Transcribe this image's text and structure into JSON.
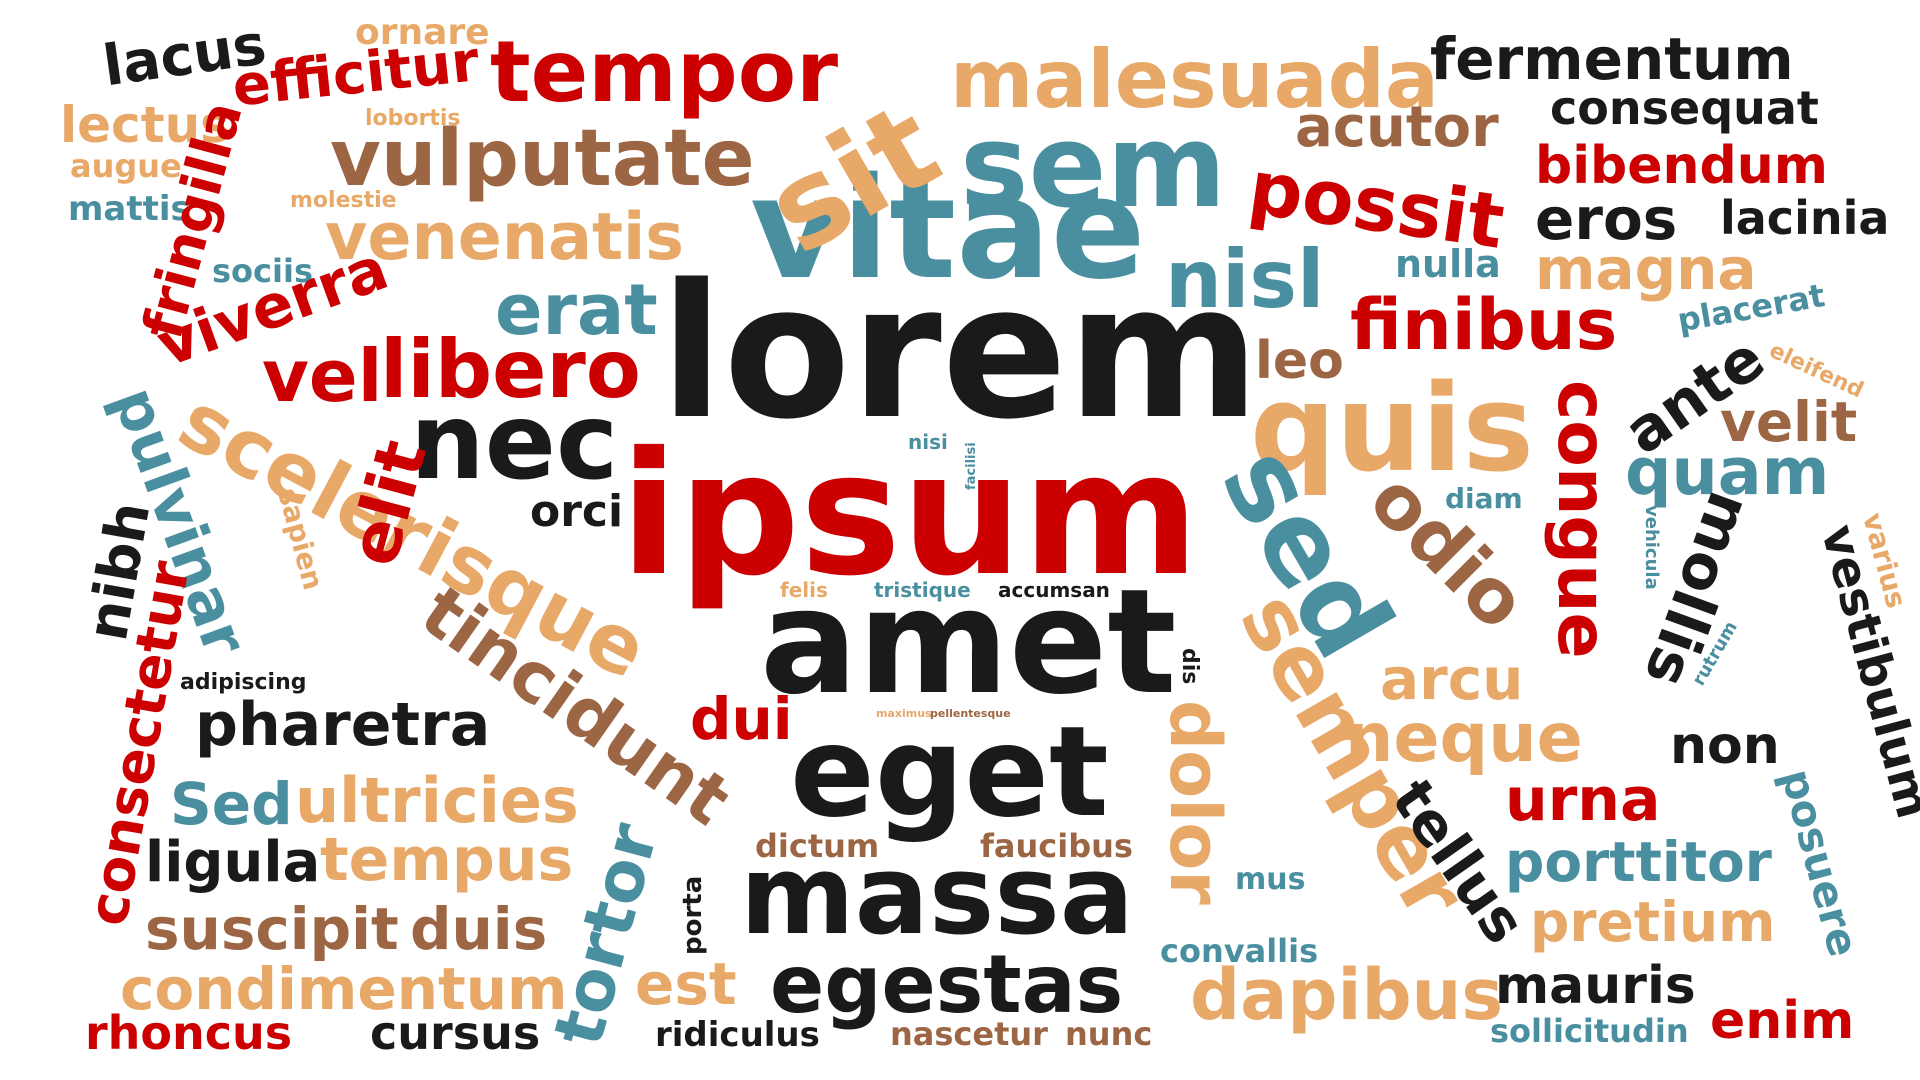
{
  "palette": {
    "black": "#1a1a1a",
    "red": "#cc0000",
    "tan": "#e8a868",
    "teal": "#4a8fa0",
    "brown": "#9c6644"
  },
  "words": [
    {
      "text": "lorem",
      "color": "red",
      "size": "xxl"
    },
    {
      "text": "ipsum",
      "color": "red",
      "size": "xxl"
    },
    {
      "text": "vitae",
      "color": "teal",
      "size": "xl"
    },
    {
      "text": "amet",
      "color": "black",
      "size": "xl"
    },
    {
      "text": "eget",
      "color": "black",
      "size": "xl"
    },
    {
      "text": "massa",
      "color": "black",
      "size": "xl"
    },
    {
      "text": "sem",
      "color": "teal",
      "size": "xl"
    },
    {
      "text": "sit",
      "color": "tan",
      "size": "xl"
    },
    {
      "text": "quis",
      "color": "tan",
      "size": "xl"
    },
    {
      "text": "nec",
      "color": "black",
      "size": "l"
    },
    {
      "text": "sed",
      "color": "teal",
      "size": "l"
    },
    {
      "text": "semper",
      "color": "tan",
      "size": "l"
    },
    {
      "text": "scelerisque",
      "color": "tan",
      "size": "l"
    },
    {
      "text": "tincidunt",
      "color": "brown",
      "size": "l"
    },
    {
      "text": "egestas",
      "color": "black",
      "size": "l"
    },
    {
      "text": "malesuada",
      "color": "tan",
      "size": "l"
    },
    {
      "text": "tempor",
      "color": "red",
      "size": "l"
    },
    {
      "text": "possit",
      "color": "red",
      "size": "l"
    },
    {
      "text": "vulputate",
      "color": "brown",
      "size": "l"
    },
    {
      "text": "libero",
      "color": "red",
      "size": "l"
    },
    {
      "text": "nisl",
      "color": "teal",
      "size": "l"
    },
    {
      "text": "odio",
      "color": "brown",
      "size": "l"
    },
    {
      "text": "dolor",
      "color": "tan",
      "size": "l"
    },
    {
      "text": "dapibus",
      "color": "tan",
      "size": "l"
    },
    {
      "text": "congue",
      "color": "red",
      "size": "l"
    },
    {
      "text": "fermentum",
      "color": "black",
      "size": "m"
    },
    {
      "text": "consequat",
      "color": "black",
      "size": "m"
    },
    {
      "text": "acutor",
      "color": "brown",
      "size": "m"
    },
    {
      "text": "bibendum",
      "color": "red",
      "size": "m"
    },
    {
      "text": "eros",
      "color": "black",
      "size": "m"
    },
    {
      "text": "lacinia",
      "color": "black",
      "size": "m"
    },
    {
      "text": "magna",
      "color": "tan",
      "size": "m"
    },
    {
      "text": "nulla",
      "color": "teal",
      "size": "s"
    },
    {
      "text": "finibus",
      "color": "red",
      "size": "m"
    },
    {
      "text": "placerat",
      "color": "teal",
      "size": "s"
    },
    {
      "text": "eleifend",
      "color": "tan",
      "size": "xs"
    },
    {
      "text": "ante",
      "color": "black",
      "size": "m"
    },
    {
      "text": "velit",
      "color": "brown",
      "size": "m"
    },
    {
      "text": "quam",
      "color": "teal",
      "size": "m"
    },
    {
      "text": "diam",
      "color": "teal",
      "size": "s"
    },
    {
      "text": "mollis",
      "color": "black",
      "size": "m"
    },
    {
      "text": "vestibulum",
      "color": "black",
      "size": "m"
    },
    {
      "text": "varius",
      "color": "tan",
      "size": "s"
    },
    {
      "text": "vehicula",
      "color": "teal",
      "size": "xs"
    },
    {
      "text": "rutrum",
      "color": "teal",
      "size": "xs"
    },
    {
      "text": "arcu",
      "color": "tan",
      "size": "m"
    },
    {
      "text": "neque",
      "color": "tan",
      "size": "m"
    },
    {
      "text": "non",
      "color": "black",
      "size": "m"
    },
    {
      "text": "urna",
      "color": "red",
      "size": "m"
    },
    {
      "text": "posuere",
      "color": "teal",
      "size": "m"
    },
    {
      "text": "porttitor",
      "color": "teal",
      "size": "m"
    },
    {
      "text": "tellus",
      "color": "black",
      "size": "m"
    },
    {
      "text": "pretium",
      "color": "tan",
      "size": "m"
    },
    {
      "text": "mauris",
      "color": "black",
      "size": "m"
    },
    {
      "text": "enim",
      "color": "red",
      "size": "m"
    },
    {
      "text": "sollicitudin",
      "color": "teal",
      "size": "s"
    },
    {
      "text": "lacus",
      "color": "black",
      "size": "m"
    },
    {
      "text": "ornare",
      "color": "tan",
      "size": "s"
    },
    {
      "text": "efficitur",
      "color": "red",
      "size": "m"
    },
    {
      "text": "lectus",
      "color": "tan",
      "size": "m"
    },
    {
      "text": "lobortis",
      "color": "tan",
      "size": "xs"
    },
    {
      "text": "augue",
      "color": "tan",
      "size": "s"
    },
    {
      "text": "mattis",
      "color": "teal",
      "size": "s"
    },
    {
      "text": "molestie",
      "color": "tan",
      "size": "xs"
    },
    {
      "text": "fringilla",
      "color": "red",
      "size": "m"
    },
    {
      "text": "venenatis",
      "color": "tan",
      "size": "m"
    },
    {
      "text": "sociis",
      "color": "teal",
      "size": "s"
    },
    {
      "text": "erat",
      "color": "teal",
      "size": "m"
    },
    {
      "text": "viverra",
      "color": "red",
      "size": "m"
    },
    {
      "text": "vel",
      "color": "red",
      "size": "m"
    },
    {
      "text": "leo",
      "color": "brown",
      "size": "m"
    },
    {
      "text": "pulvinar",
      "color": "teal",
      "size": "m"
    },
    {
      "text": "nisi",
      "color": "teal",
      "size": "xs"
    },
    {
      "text": "orci",
      "color": "black",
      "size": "s"
    },
    {
      "text": "facilisi",
      "color": "teal",
      "size": "xs"
    },
    {
      "text": "sapien",
      "color": "tan",
      "size": "s"
    },
    {
      "text": "nibh",
      "color": "black",
      "size": "m"
    },
    {
      "text": "elit",
      "color": "red",
      "size": "m"
    },
    {
      "text": "consectetur",
      "color": "red",
      "size": "m"
    },
    {
      "text": "felis",
      "color": "tan",
      "size": "xs"
    },
    {
      "text": "tristique",
      "color": "teal",
      "size": "xs"
    },
    {
      "text": "accumsan",
      "color": "black",
      "size": "xs"
    },
    {
      "text": "adipiscing",
      "color": "black",
      "size": "xs"
    },
    {
      "text": "dis",
      "color": "black",
      "size": "xs"
    },
    {
      "text": "pharetra",
      "color": "black",
      "size": "m"
    },
    {
      "text": "dui",
      "color": "red",
      "size": "m"
    },
    {
      "text": "maximus",
      "color": "tan",
      "size": "xxs"
    },
    {
      "text": "pellentesque",
      "color": "brown",
      "size": "xxs"
    },
    {
      "text": "Sed",
      "color": "teal",
      "size": "m"
    },
    {
      "text": "ultricies",
      "color": "tan",
      "size": "m"
    },
    {
      "text": "ligula",
      "color": "black",
      "size": "m"
    },
    {
      "text": "tempus",
      "color": "tan",
      "size": "m"
    },
    {
      "text": "tortor",
      "color": "teal",
      "size": "m"
    },
    {
      "text": "dictum",
      "color": "brown",
      "size": "s"
    },
    {
      "text": "faucibus",
      "color": "brown",
      "size": "s"
    },
    {
      "text": "mus",
      "color": "teal",
      "size": "s"
    },
    {
      "text": "convallis",
      "color": "teal",
      "size": "s"
    },
    {
      "text": "suscipit",
      "color": "brown",
      "size": "m"
    },
    {
      "text": "duis",
      "color": "brown",
      "size": "m"
    },
    {
      "text": "porta",
      "color": "black",
      "size": "xs"
    },
    {
      "text": "condimentum",
      "color": "tan",
      "size": "m"
    },
    {
      "text": "est",
      "color": "tan",
      "size": "m"
    },
    {
      "text": "rhoncus",
      "color": "red",
      "size": "m"
    },
    {
      "text": "cursus",
      "color": "black",
      "size": "m"
    },
    {
      "text": "ridiculus",
      "color": "black",
      "size": "s"
    },
    {
      "text": "nascetur",
      "color": "brown",
      "size": "s"
    },
    {
      "text": "nunc",
      "color": "brown",
      "size": "s"
    }
  ]
}
